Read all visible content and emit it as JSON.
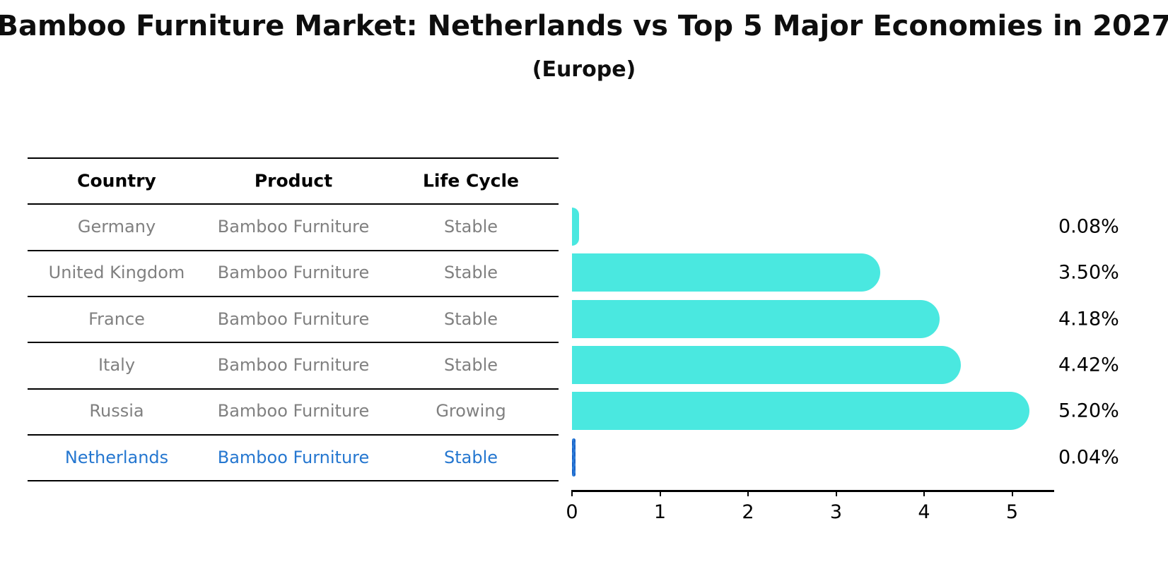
{
  "title": "Bamboo Furniture Market: Netherlands vs Top 5 Major Economies in 2027",
  "subtitle": "(Europe)",
  "table": {
    "columns": [
      "Country",
      "Product",
      "Life Cycle"
    ],
    "rows": [
      {
        "country": "Germany",
        "product": "Bamboo Furniture",
        "life_cycle": "Stable",
        "highlight": false
      },
      {
        "country": "United Kingdom",
        "product": "Bamboo Furniture",
        "life_cycle": "Stable",
        "highlight": false
      },
      {
        "country": "France",
        "product": "Bamboo Furniture",
        "life_cycle": "Stable",
        "highlight": false
      },
      {
        "country": "Italy",
        "product": "Bamboo Furniture",
        "life_cycle": "Stable",
        "highlight": false
      },
      {
        "country": "Russia",
        "product": "Bamboo Furniture",
        "life_cycle": "Growing",
        "highlight": false
      },
      {
        "country": "Netherlands",
        "product": "Bamboo Furniture",
        "life_cycle": "Stable",
        "highlight": true
      }
    ]
  },
  "chart_data": {
    "type": "bar",
    "orientation": "horizontal",
    "title": "Bamboo Furniture Market: Netherlands vs Top 5 Major Economies in 2027",
    "subtitle": "(Europe)",
    "categories": [
      "Germany",
      "United Kingdom",
      "France",
      "Italy",
      "Russia",
      "Netherlands"
    ],
    "values": [
      0.08,
      3.5,
      4.18,
      4.42,
      5.2,
      0.04
    ],
    "value_labels": [
      "0.08%",
      "3.50%",
      "4.18%",
      "4.42%",
      "5.20%",
      "0.04%"
    ],
    "xlabel": "",
    "ylabel": "",
    "xlim": [
      0,
      5.5
    ],
    "x_ticks": [
      0,
      1,
      2,
      3,
      4,
      5
    ],
    "grid": false,
    "legend": "none",
    "highlight_index": 5
  },
  "colors": {
    "bar": "#4ae8e0",
    "highlight": "#2e7fd9",
    "highlight_text": "#2577d0",
    "row_text": "#808080",
    "header_text": "#000000",
    "line": "#000000"
  }
}
